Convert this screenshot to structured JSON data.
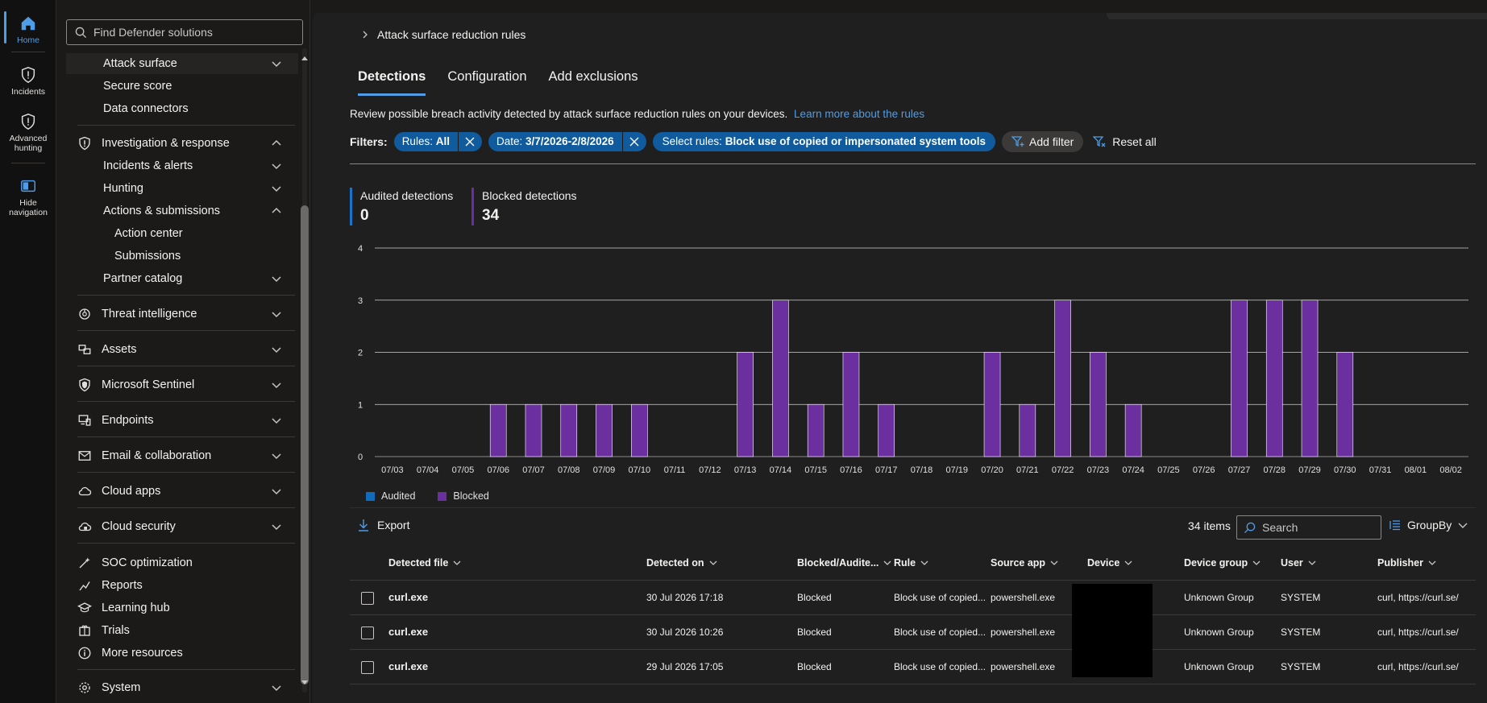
{
  "rail": {
    "items": [
      {
        "label": "Home",
        "icon": "home-icon"
      },
      {
        "label": "Incidents",
        "icon": "shield-alert-icon"
      },
      {
        "label": "Advanced hunting",
        "icon": "shield-alert-icon"
      },
      {
        "label": "Hide navigation",
        "icon": "hide-navigation-icon"
      }
    ]
  },
  "nav": {
    "search_placeholder": "Find Defender solutions",
    "attack_surface": "Attack surface",
    "secure_score": "Secure score",
    "data_connectors": "Data connectors",
    "investigation": "Investigation & response",
    "incidents_alerts": "Incidents & alerts",
    "hunting": "Hunting",
    "actions_submissions": "Actions & submissions",
    "action_center": "Action center",
    "submissions": "Submissions",
    "partner_catalog": "Partner catalog",
    "threat_intel": "Threat intelligence",
    "assets": "Assets",
    "sentinel": "Microsoft Sentinel",
    "endpoints": "Endpoints",
    "email_collab": "Email & collaboration",
    "cloud_apps": "Cloud apps",
    "cloud_security": "Cloud security",
    "soc_opt": "SOC optimization",
    "reports": "Reports",
    "learning_hub": "Learning hub",
    "trials": "Trials",
    "more_resources": "More resources",
    "system": "System"
  },
  "breadcrumb": "Attack surface reduction rules",
  "tabs": [
    "Detections",
    "Configuration",
    "Add exclusions"
  ],
  "description": {
    "text": "Review possible breach activity detected by attack surface reduction rules on your devices.",
    "link": "Learn more about the rules"
  },
  "filters": {
    "label": "Filters:",
    "rules": {
      "key": "Rules:",
      "value": "All"
    },
    "date": {
      "key": "Date:",
      "value": "3/7/2026-2/8/2026"
    },
    "select_rules": {
      "key": "Select rules:",
      "value": "Block use of copied or impersonated system tools"
    },
    "add_filter": "Add filter",
    "reset_all": "Reset all"
  },
  "stats": {
    "audited_label": "Audited detections",
    "audited_value": "0",
    "blocked_label": "Blocked detections",
    "blocked_value": "34"
  },
  "colors": {
    "audited": "#0f6cbd",
    "blocked": "#6b2fa0",
    "accent": "#4f9de8"
  },
  "chart_data": {
    "type": "bar",
    "categories": [
      "07/03",
      "07/04",
      "07/05",
      "07/06",
      "07/07",
      "07/08",
      "07/09",
      "07/10",
      "07/11",
      "07/12",
      "07/13",
      "07/14",
      "07/15",
      "07/16",
      "07/17",
      "07/18",
      "07/19",
      "07/20",
      "07/21",
      "07/22",
      "07/23",
      "07/24",
      "07/25",
      "07/26",
      "07/27",
      "07/28",
      "07/29",
      "07/30",
      "07/31",
      "08/01",
      "08/02"
    ],
    "series": [
      {
        "name": "Audited",
        "values": [
          0,
          0,
          0,
          0,
          0,
          0,
          0,
          0,
          0,
          0,
          0,
          0,
          0,
          0,
          0,
          0,
          0,
          0,
          0,
          0,
          0,
          0,
          0,
          0,
          0,
          0,
          0,
          0,
          0,
          0,
          0
        ]
      },
      {
        "name": "Blocked",
        "values": [
          0,
          0,
          0,
          1,
          1,
          1,
          1,
          1,
          0,
          0,
          2,
          3,
          1,
          2,
          1,
          0,
          0,
          2,
          1,
          3,
          2,
          1,
          0,
          0,
          3,
          3,
          3,
          2,
          0,
          0,
          0
        ]
      }
    ],
    "ylim": [
      0,
      4
    ],
    "yticks": [
      0,
      1,
      2,
      3,
      4
    ],
    "grid": true,
    "legend": "bottom-left"
  },
  "table": {
    "export": "Export",
    "items_count": "34 items",
    "search_placeholder": "Search",
    "groupby": "GroupBy",
    "columns": [
      "Detected file",
      "Detected on",
      "Blocked/Audite...",
      "Rule",
      "Source app",
      "Device",
      "Device group",
      "User",
      "Publisher"
    ],
    "rows": [
      {
        "file": "curl.exe",
        "detected_on": "30 Jul 2026 17:18",
        "status": "Blocked",
        "rule": "Block use of copied...",
        "source_app": "powershell.exe",
        "device_group": "Unknown Group",
        "user": "SYSTEM",
        "publisher": "curl, https://curl.se/"
      },
      {
        "file": "curl.exe",
        "detected_on": "30 Jul 2026 10:26",
        "status": "Blocked",
        "rule": "Block use of copied...",
        "source_app": "powershell.exe",
        "device_group": "Unknown Group",
        "user": "SYSTEM",
        "publisher": "curl, https://curl.se/"
      },
      {
        "file": "curl.exe",
        "detected_on": "29 Jul 2026 17:05",
        "status": "Blocked",
        "rule": "Block use of copied...",
        "source_app": "powershell.exe",
        "device_group": "Unknown Group",
        "user": "SYSTEM",
        "publisher": "curl, https://curl.se/"
      }
    ]
  }
}
